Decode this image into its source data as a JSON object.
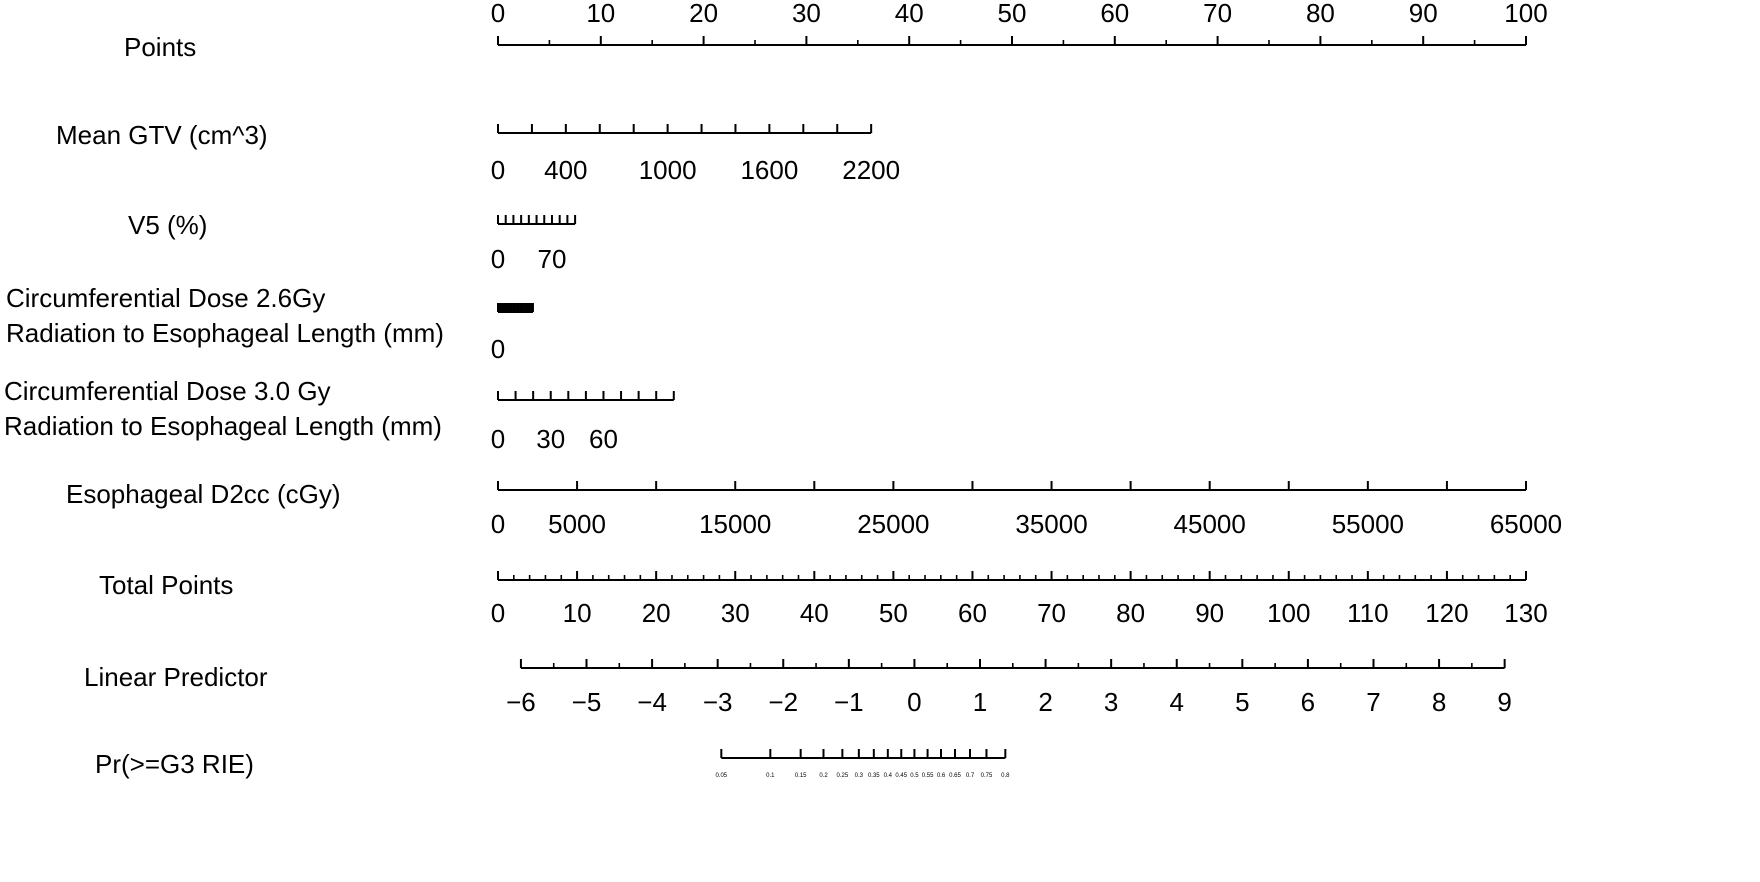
{
  "chart_data": {
    "type": "nomogram",
    "title": "",
    "rows": [
      {
        "key": "points",
        "label": [
          "Points"
        ],
        "range": [
          0,
          100
        ],
        "major_ticks": [
          0,
          10,
          20,
          30,
          40,
          50,
          60,
          70,
          80,
          90,
          100
        ],
        "minor_ticks": [
          5,
          15,
          25,
          35,
          45,
          55,
          65,
          75,
          85,
          95
        ],
        "tick_labels": [
          "0",
          "10",
          "20",
          "30",
          "40",
          "50",
          "60",
          "70",
          "80",
          "90",
          "100"
        ],
        "labels_above": true
      },
      {
        "key": "mean_gtv",
        "label": [
          "Mean GTV (cm^3)"
        ],
        "range": [
          0,
          2200
        ],
        "points_range": [
          0,
          36.3
        ],
        "major_ticks": [
          0,
          200,
          400,
          600,
          800,
          1000,
          1200,
          1400,
          1600,
          1800,
          2000,
          2200
        ],
        "tick_labels": [
          "0",
          "400",
          "1000",
          "1600",
          "2200"
        ],
        "labeled_values": [
          0,
          400,
          1000,
          1600,
          2200
        ]
      },
      {
        "key": "v5",
        "label": [
          "V5 (%)"
        ],
        "range": [
          0,
          100
        ],
        "points_range": [
          0,
          7.5
        ],
        "major_ticks": [
          0,
          10,
          20,
          30,
          40,
          50,
          60,
          70,
          80,
          90,
          100
        ],
        "tick_labels": [
          "0",
          "70"
        ],
        "labeled_values": [
          0,
          70
        ]
      },
      {
        "key": "circ_26",
        "label": [
          "Circumferential Dose 2.6Gy",
          "Radiation to Esophageal Length (mm)"
        ],
        "range": [
          0,
          100
        ],
        "points_range": [
          0,
          3.4
        ],
        "major_ticks": [
          0,
          5,
          10,
          15,
          20,
          25,
          30,
          35,
          40,
          45,
          50,
          55,
          60,
          65,
          70,
          75,
          80,
          85,
          90,
          95,
          100
        ],
        "tick_labels": [
          "0"
        ],
        "labeled_values": [
          0
        ]
      },
      {
        "key": "circ_30",
        "label": [
          "Circumferential Dose 3.0 Gy",
          "Radiation to Esophageal Length (mm)"
        ],
        "range": [
          0,
          100
        ],
        "points_range": [
          0,
          17.1
        ],
        "major_ticks": [
          0,
          10,
          20,
          30,
          40,
          50,
          60,
          70,
          80,
          90,
          100
        ],
        "tick_labels": [
          "0",
          "30",
          "60"
        ],
        "labeled_values": [
          0,
          30,
          60
        ]
      },
      {
        "key": "d2cc",
        "label": [
          "Esophageal D2cc (cGy)"
        ],
        "range": [
          0,
          65000
        ],
        "points_range": [
          0,
          100
        ],
        "major_ticks": [
          0,
          5000,
          10000,
          15000,
          20000,
          25000,
          30000,
          35000,
          40000,
          45000,
          50000,
          55000,
          60000,
          65000
        ],
        "tick_labels": [
          "0",
          "5000",
          "15000",
          "25000",
          "35000",
          "45000",
          "55000",
          "65000"
        ],
        "labeled_values": [
          0,
          5000,
          15000,
          25000,
          35000,
          45000,
          55000,
          65000
        ]
      },
      {
        "key": "total_points",
        "label": [
          "Total Points"
        ],
        "range": [
          0,
          130
        ],
        "major_ticks": [
          0,
          10,
          20,
          30,
          40,
          50,
          60,
          70,
          80,
          90,
          100,
          110,
          120,
          130
        ],
        "minor_step": 2,
        "tick_labels": [
          "0",
          "10",
          "20",
          "30",
          "40",
          "50",
          "60",
          "70",
          "80",
          "90",
          "100",
          "110",
          "120",
          "130"
        ],
        "labeled_values": [
          0,
          10,
          20,
          30,
          40,
          50,
          60,
          70,
          80,
          90,
          100,
          110,
          120,
          130
        ]
      },
      {
        "key": "linear_predictor",
        "label": [
          "Linear Predictor"
        ],
        "range": [
          -6,
          9
        ],
        "total_points_range": [
          2.9,
          127.3
        ],
        "major_ticks": [
          -6,
          -5,
          -4,
          -3,
          -2,
          -1,
          0,
          1,
          2,
          3,
          4,
          5,
          6,
          7,
          8,
          9
        ],
        "minor_step": 0.5,
        "tick_labels": [
          "−6",
          "−5",
          "−4",
          "−3",
          "−2",
          "−1",
          "0",
          "1",
          "2",
          "3",
          "4",
          "5",
          "6",
          "7",
          "8",
          "9"
        ],
        "labeled_values": [
          -6,
          -5,
          -4,
          -3,
          -2,
          -1,
          0,
          1,
          2,
          3,
          4,
          5,
          6,
          7,
          8,
          9
        ]
      },
      {
        "key": "probability",
        "label": [
          "Pr(>=G3 RIE)"
        ],
        "probabilities": [
          0.05,
          0.1,
          0.15,
          0.2,
          0.25,
          0.3,
          0.35,
          0.4,
          0.45,
          0.5,
          0.55,
          0.6,
          0.65,
          0.7,
          0.75,
          0.8
        ],
        "tick_labels": [
          "0.05",
          "0.1",
          "0.15",
          "0.2",
          "0.25",
          "0.3",
          "0.35",
          "0.4",
          "0.45",
          "0.5",
          "0.55",
          "0.6",
          "0.65",
          "0.7",
          "0.75",
          "0.8"
        ],
        "tiny_labels": true
      }
    ]
  }
}
